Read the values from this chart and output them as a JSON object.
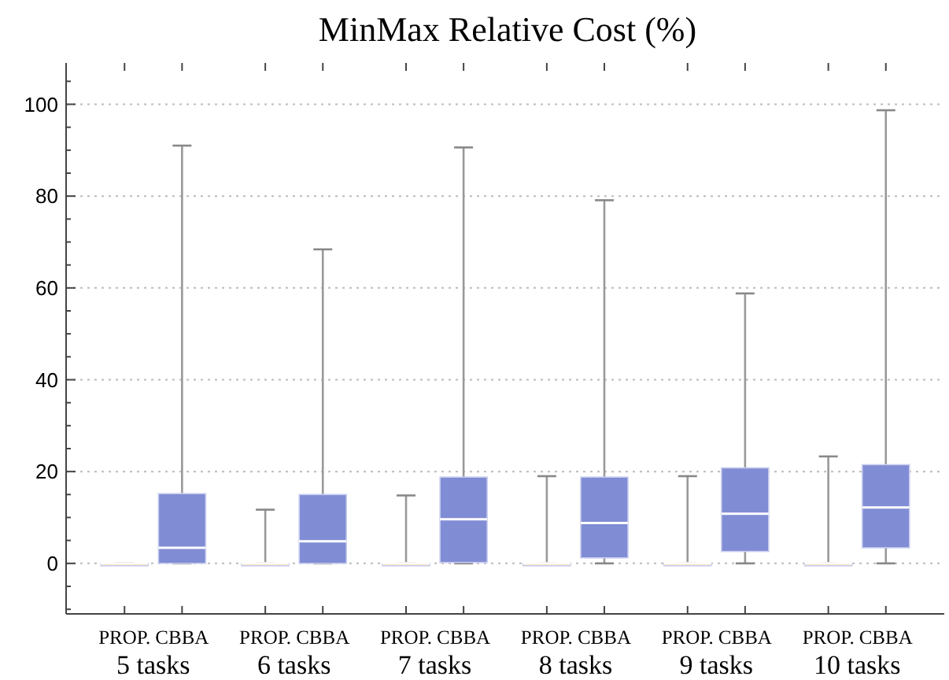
{
  "chart_data": {
    "type": "box",
    "title": "MinMax Relative Cost (%)",
    "categories": [
      "PROP.",
      "CBBA",
      "PROP.",
      "CBBA",
      "PROP.",
      "CBBA",
      "PROP.",
      "CBBA",
      "PROP.",
      "CBBA",
      "PROP.",
      "CBBA"
    ],
    "colors": [
      "#fbdcb0",
      "#808cd4",
      "#fbdcb0",
      "#808cd4",
      "#fbdcb0",
      "#808cd4",
      "#fbdcb0",
      "#808cd4",
      "#fbdcb0",
      "#808cd4",
      "#fbdcb0",
      "#808cd4"
    ],
    "boxes": [
      {
        "low": 0,
        "q1": 0,
        "median": 0,
        "q3": 0,
        "high": 0
      },
      {
        "low": 0,
        "q1": 0,
        "median": 3.4,
        "q3": 15.2,
        "high": 91
      },
      {
        "low": 0,
        "q1": 0,
        "median": 0,
        "q3": 0,
        "high": 11.7
      },
      {
        "low": 0,
        "q1": 0,
        "median": 4.8,
        "q3": 15,
        "high": 68.4
      },
      {
        "low": 0,
        "q1": 0,
        "median": 0,
        "q3": 0,
        "high": 14.8
      },
      {
        "low": 0,
        "q1": 0.2,
        "median": 9.6,
        "q3": 18.8,
        "high": 90.6
      },
      {
        "low": 0,
        "q1": 0,
        "median": 0,
        "q3": 0,
        "high": 19
      },
      {
        "low": 0,
        "q1": 1.2,
        "median": 8.8,
        "q3": 18.8,
        "high": 79.1
      },
      {
        "low": 0,
        "q1": 0,
        "median": 0,
        "q3": 0,
        "high": 19
      },
      {
        "low": 0,
        "q1": 2.6,
        "median": 10.8,
        "q3": 20.8,
        "high": 58.8
      },
      {
        "low": 0,
        "q1": 0,
        "median": 0,
        "q3": 0,
        "high": 23.3
      },
      {
        "low": 0,
        "q1": 3.4,
        "median": 12.2,
        "q3": 21.5,
        "high": 98.7
      }
    ],
    "annotations": [
      "5 tasks",
      "6 tasks",
      "7 tasks",
      "8 tasks",
      "9 tasks",
      "10 tasks"
    ],
    "ylim": [
      -11,
      109
    ],
    "yticks": [
      {
        "value": -10,
        "label": null
      },
      {
        "value": -5,
        "label": null
      },
      0,
      {
        "value": 5,
        "label": null
      },
      {
        "value": 10,
        "label": null
      },
      {
        "value": 15,
        "label": null
      },
      20,
      {
        "value": 25,
        "label": null
      },
      {
        "value": 30,
        "label": null
      },
      {
        "value": 35,
        "label": null
      },
      40,
      {
        "value": 45,
        "label": null
      },
      {
        "value": 50,
        "label": null
      },
      {
        "value": 55,
        "label": null
      },
      60,
      {
        "value": 65,
        "label": null
      },
      {
        "value": 70,
        "label": null
      },
      {
        "value": 75,
        "label": null
      },
      80,
      {
        "value": 85,
        "label": null
      },
      {
        "value": 90,
        "label": null
      },
      {
        "value": 95,
        "label": null
      },
      100,
      {
        "value": 105,
        "label": null
      }
    ],
    "grid": "y"
  }
}
